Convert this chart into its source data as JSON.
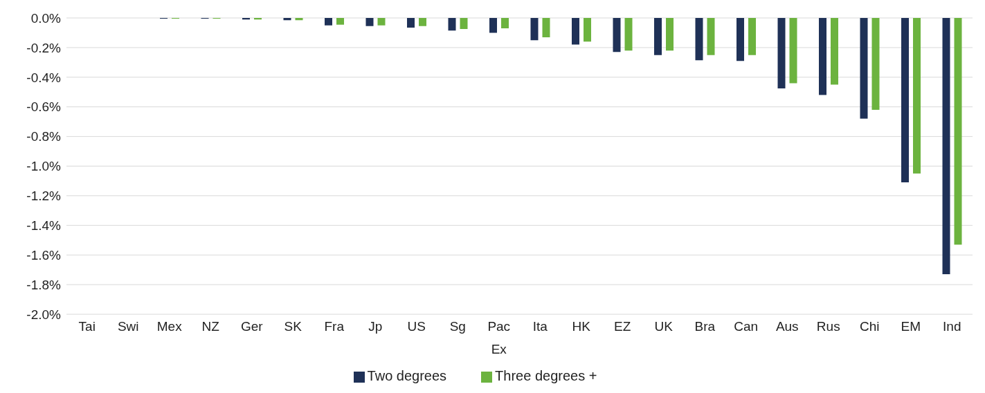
{
  "chart_data": {
    "type": "bar",
    "categories": [
      "Tai",
      "Swi",
      "Mex",
      "NZ",
      "Ger",
      "SK",
      "Fra",
      "Jp",
      "US",
      "Sg",
      "Pac Ex",
      "Ita",
      "HK",
      "EZ",
      "UK",
      "Bra",
      "Can",
      "Aus",
      "Rus",
      "Chi",
      "EM",
      "Ind"
    ],
    "series": [
      {
        "name": "Two degrees",
        "color": "#1f3157",
        "values": [
          0,
          0,
          -0.005,
          -0.005,
          -0.01,
          -0.015,
          -0.05,
          -0.055,
          -0.065,
          -0.085,
          -0.1,
          -0.15,
          -0.18,
          -0.23,
          -0.25,
          -0.285,
          -0.29,
          -0.475,
          -0.52,
          -0.68,
          -1.11,
          -1.73
        ]
      },
      {
        "name": "Three degrees +",
        "color": "#6cb33f",
        "values": [
          0,
          0,
          -0.005,
          -0.005,
          -0.01,
          -0.015,
          -0.045,
          -0.05,
          -0.055,
          -0.075,
          -0.07,
          -0.13,
          -0.16,
          -0.22,
          -0.22,
          -0.25,
          -0.25,
          -0.44,
          -0.45,
          -0.62,
          -1.05,
          -1.53
        ]
      }
    ],
    "ylim": [
      -2,
      0
    ],
    "yticks": [
      {
        "value": 0,
        "label": "0.0%"
      },
      {
        "value": -0.2,
        "label": "-0.2%"
      },
      {
        "value": -0.4,
        "label": "-0.4%"
      },
      {
        "value": -0.6,
        "label": "-0.6%"
      },
      {
        "value": -0.8,
        "label": "-0.8%"
      },
      {
        "value": -1,
        "label": "-1.0%"
      },
      {
        "value": -1.2,
        "label": "-1.2%"
      },
      {
        "value": -1.4,
        "label": "-1.4%"
      },
      {
        "value": -1.6,
        "label": "-1.6%"
      },
      {
        "value": -1.8,
        "label": "-1.8%"
      },
      {
        "value": -2,
        "label": "-2.0%"
      }
    ],
    "grid": "y",
    "legend": "bottom"
  }
}
